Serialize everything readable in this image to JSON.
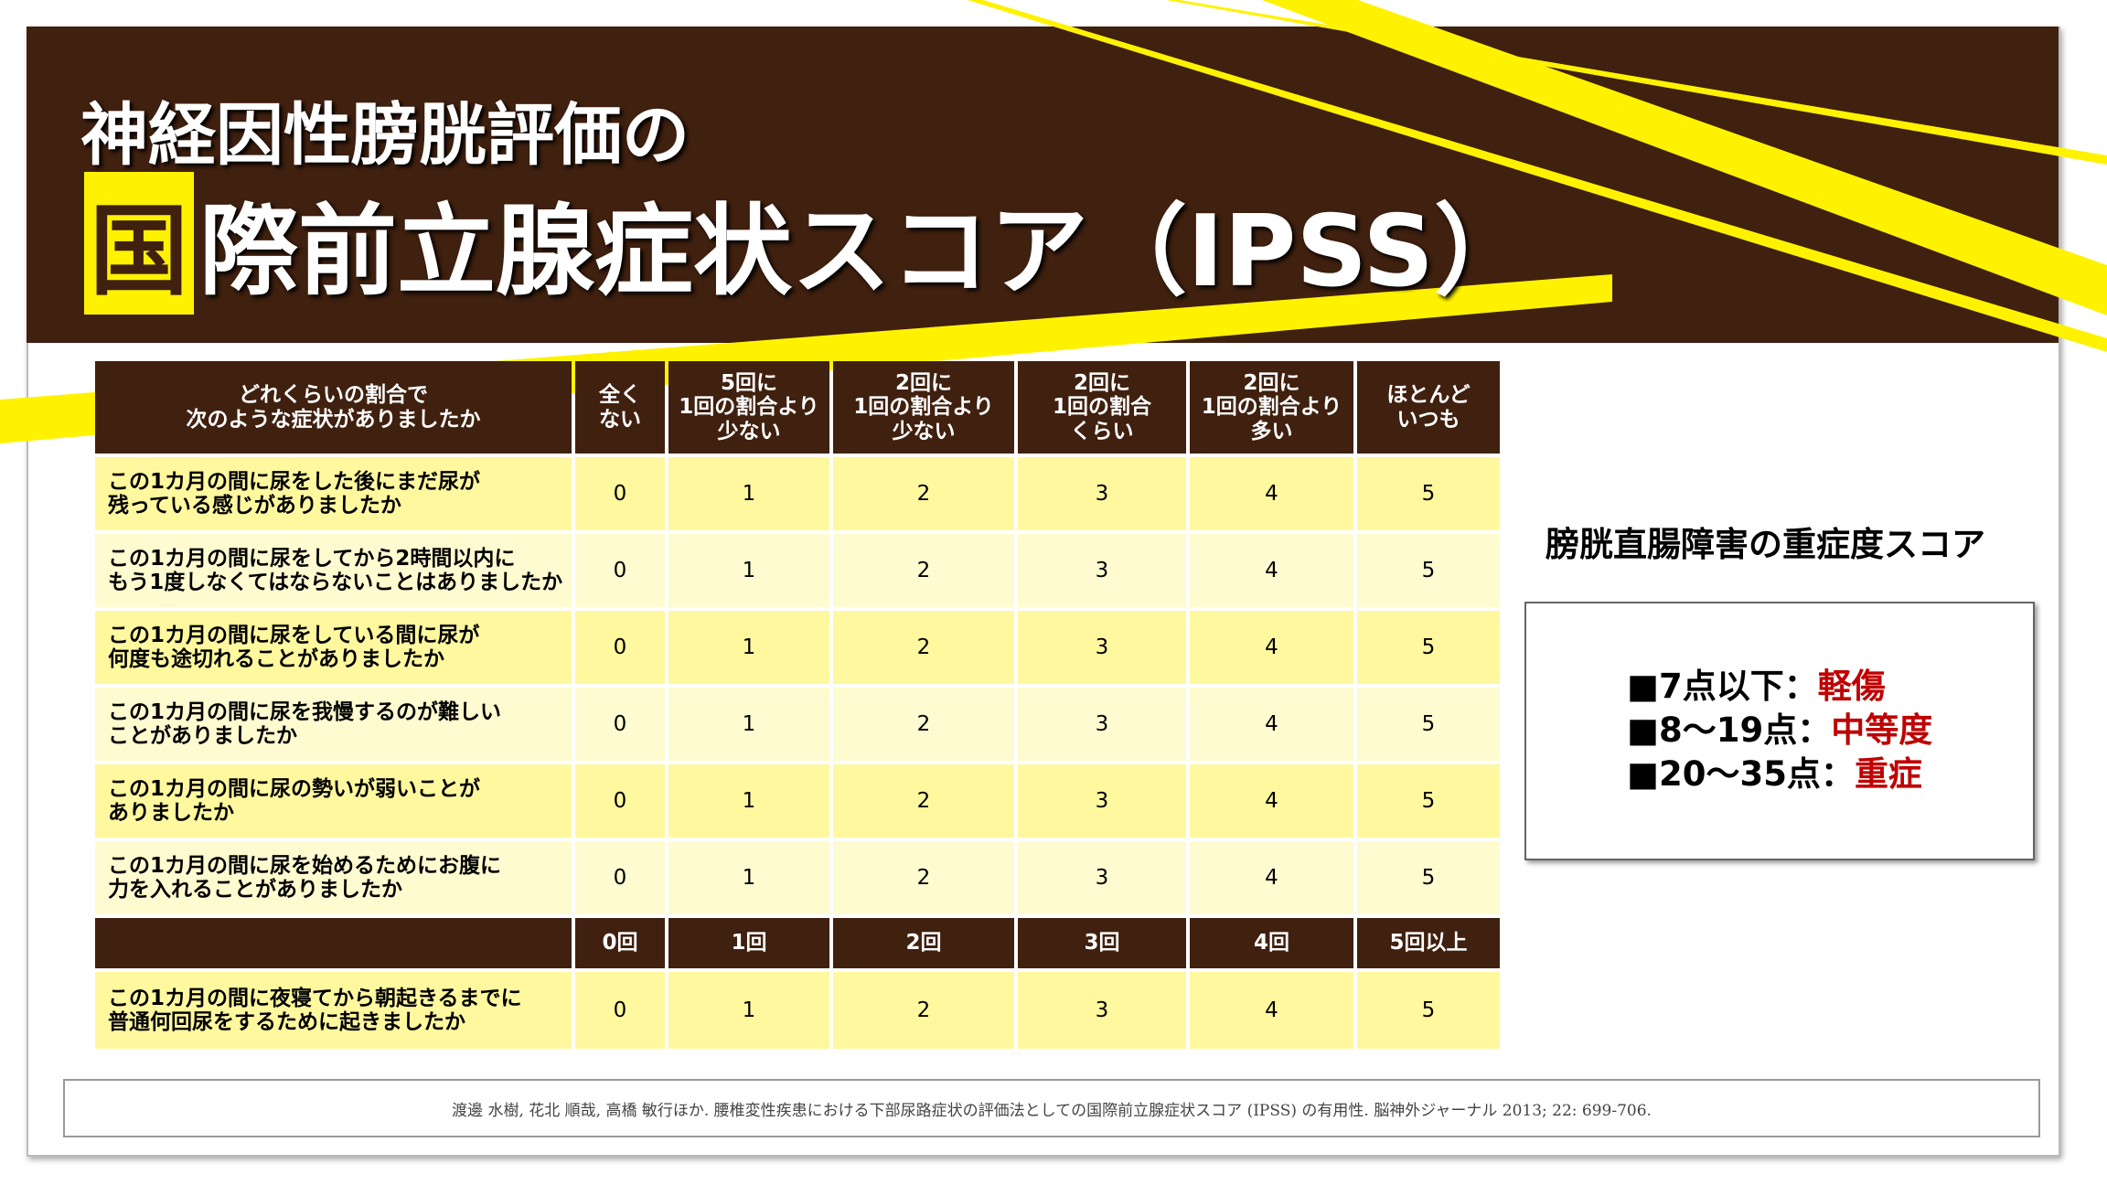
{
  "header": {
    "title_line1": "神経因性膀胱評価の",
    "title_highlight": "国",
    "title_rest": "際前立腺症状スコア（IPSS）"
  },
  "table": {
    "header": [
      "どれくらいの割合で\n次のような症状がありましたか",
      "全く\nない",
      "5回に\n1回の割合より\n少ない",
      "2回に\n1回の割合より\n少ない",
      "2回に\n1回の割合\nくらい",
      "2回に\n1回の割合より\n多い",
      "ほとんど\nいつも"
    ],
    "rows": [
      [
        "この1カ月の間に尿をした後にまだ尿が\n残っている感じがありましたか",
        0,
        1,
        2,
        3,
        4,
        5
      ],
      [
        "この1カ月の間に尿をしてから2時間以内に\nもう1度しなくてはならないことはありましたか",
        0,
        1,
        2,
        3,
        4,
        5
      ],
      [
        "この1カ月の間に尿をしている間に尿が\n何度も途切れることがありましたか",
        0,
        1,
        2,
        3,
        4,
        5
      ],
      [
        "この1カ月の間に尿を我慢するのが難しい\nことがありましたか",
        0,
        1,
        2,
        3,
        4,
        5
      ],
      [
        "この1カ月の間に尿の勢いが弱いことが\nありましたか",
        0,
        1,
        2,
        3,
        4,
        5
      ],
      [
        "この1カ月の間に尿を始めるためにお腹に\n力を入れることがありましたか",
        0,
        1,
        2,
        3,
        4,
        5
      ]
    ],
    "header2": [
      "0回",
      "1回",
      "2回",
      "3回",
      "4回",
      "5回以上"
    ],
    "last_row": [
      "この1カ月の間に夜寝てから朝起きるまでに\n普通何回尿をするために起きましたか",
      0,
      1,
      2,
      3,
      4,
      5
    ]
  },
  "severity": {
    "title": "膀胱直腸障害の重症度スコア",
    "items": [
      {
        "label": "■7点以下：",
        "level": "軽傷"
      },
      {
        "label": "■8～19点：",
        "level": "中等度"
      },
      {
        "label": "■20～35点：",
        "level": "重症"
      }
    ]
  },
  "citation": "渡邊 水樹, 花北 順哉, 高橋 敏行ほか. 腰椎変性疾患における下部尿路症状の評価法としての国際前立腺症状スコア (IPSS) の有用性. 脳神外ジャーナル 2013; 22: 699-706."
}
